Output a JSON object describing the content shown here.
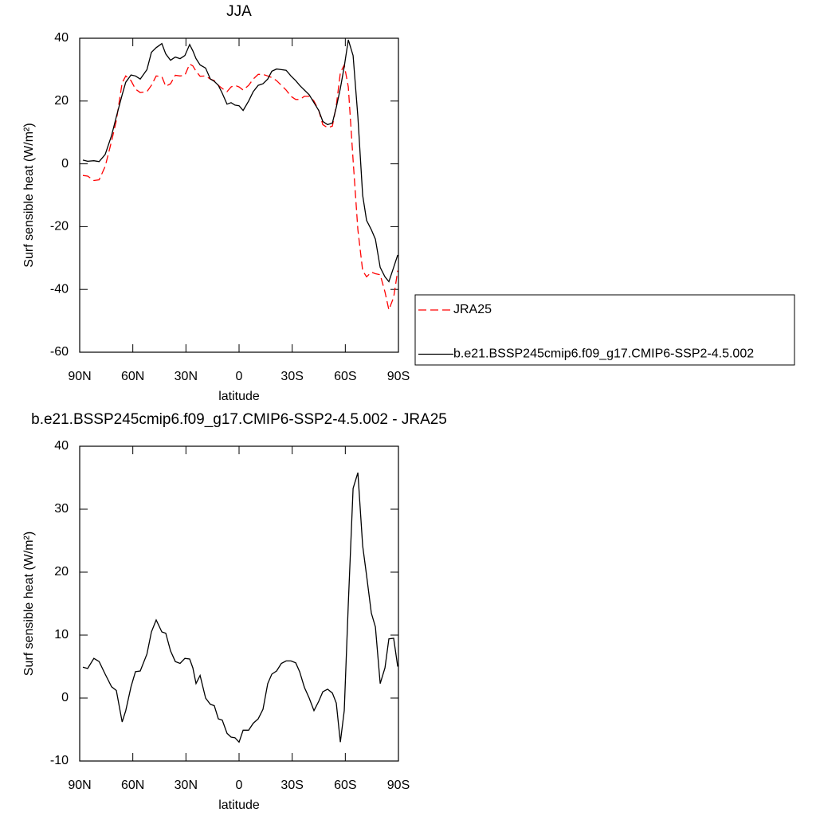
{
  "chart_data": [
    {
      "type": "line",
      "title": "JJA",
      "x_label": "latitude",
      "y_label": "Surf sensible heat (W/m²)",
      "x": [
        88.2,
        85.5,
        82,
        79,
        75.6,
        72,
        69.3,
        66,
        64,
        61,
        58.5,
        55.8,
        52,
        49.5,
        46.8,
        43.6,
        41.4,
        38.7,
        36,
        33.3,
        30.6,
        27.9,
        26.1,
        24.3,
        22,
        18.9,
        16.2,
        14,
        11.7,
        9.5,
        6.8,
        4.5,
        2.3,
        0,
        -2.3,
        -5.4,
        -8,
        -10.8,
        -13.5,
        -16.2,
        -18.5,
        -21.2,
        -23.9,
        -26.6,
        -29.3,
        -32,
        -34.2,
        -36.9,
        -39.6,
        -42.3,
        -45,
        -47.3,
        -50,
        -52.7,
        -54.9,
        -57.2,
        -59.4,
        -61.7,
        -64.4,
        -67.1,
        -69.8,
        -72,
        -74.7,
        -77,
        -79.7,
        -82.4,
        -84.6,
        -87.3,
        -89.6
      ],
      "series": [
        {
          "name": "JRA25",
          "color": "#ff0000",
          "dash": "dashed",
          "values": [
            -3.7,
            -3.9,
            -5.3,
            -5.1,
            -0.8,
            7.2,
            13.8,
            25.8,
            28,
            26.5,
            23.8,
            22.7,
            23,
            25,
            28,
            27.8,
            24.7,
            25.5,
            28.2,
            28,
            28.2,
            31.8,
            31.2,
            29.5,
            27.9,
            28,
            27,
            26.5,
            25,
            24,
            23,
            24.5,
            25,
            24.5,
            23.5,
            25,
            27,
            28.5,
            28.5,
            28,
            27.5,
            26.5,
            25,
            23.5,
            21.5,
            20.5,
            20.5,
            21.5,
            21.5,
            20,
            17,
            12.5,
            11.5,
            12,
            18.5,
            29,
            31.5,
            24.5,
            1.2,
            -21,
            -34,
            -36,
            -34.5,
            -35,
            -35.3,
            -40.8,
            -46.5,
            -42.5,
            -34
          ]
        },
        {
          "name": "b.e21.BSSP245cmip6.f09_g17.CMIP6-SSP2-4.5.002",
          "color": "#000000",
          "dash": "solid",
          "values": [
            1.2,
            0.8,
            1,
            0.7,
            3,
            9,
            15,
            22,
            26,
            28.3,
            28,
            27,
            30,
            35.5,
            37,
            38.3,
            35,
            33,
            34,
            33.5,
            34.5,
            38,
            36,
            33.5,
            31.5,
            30.5,
            27,
            26.3,
            25,
            22.5,
            19,
            19.5,
            18.7,
            18.5,
            17,
            20,
            23,
            25,
            25.5,
            27,
            29.5,
            30.2,
            30,
            29.8,
            28,
            26.5,
            25,
            23.5,
            22,
            19.5,
            17,
            13.5,
            12.5,
            13,
            18,
            24,
            31,
            39.5,
            34.5,
            15,
            -10,
            -18,
            -21,
            -24,
            -33,
            -36,
            -37.5,
            -33,
            -29
          ]
        }
      ],
      "xlim": [
        90,
        -90
      ],
      "xticks": [
        {
          "value": 90,
          "label": "90N"
        },
        {
          "value": 60,
          "label": "60N"
        },
        {
          "value": 30,
          "label": "30N"
        },
        0,
        {
          "value": -30,
          "label": "30S"
        },
        {
          "value": -60,
          "label": "60S"
        },
        {
          "value": -90,
          "label": "90S"
        }
      ],
      "ylim": [
        -60,
        40
      ],
      "yticks": [
        -60,
        -40,
        -20,
        0,
        20,
        40
      ],
      "legend": "right"
    },
    {
      "type": "line",
      "title": "b.e21.BSSP245cmip6.f09_g17.CMIP6-SSP2-4.5.002 - JRA25",
      "x_label": "latitude",
      "y_label": "Surf sensible heat (W/m²)",
      "x": [
        88.2,
        85.5,
        82,
        79,
        75.6,
        72,
        69.3,
        66,
        64,
        61,
        58.5,
        55.8,
        52,
        49.5,
        46.8,
        43.6,
        41.4,
        38.7,
        36,
        33.3,
        30.6,
        27.9,
        26.1,
        24.3,
        22,
        18.9,
        16.2,
        14,
        11.7,
        9.5,
        6.8,
        4.5,
        2.3,
        0,
        -2.3,
        -5.4,
        -8,
        -10.8,
        -13.5,
        -16.2,
        -18.5,
        -21.2,
        -23.9,
        -26.6,
        -29.3,
        -32,
        -34.2,
        -36.9,
        -39.6,
        -42.3,
        -45,
        -47.3,
        -50,
        -52.7,
        -54.9,
        -57.2,
        -59.4,
        -61.7,
        -64.4,
        -67.1,
        -69.8,
        -72,
        -74.7,
        -77,
        -79.7,
        -82.4,
        -84.6,
        -87.3,
        -89.6
      ],
      "values": [
        4.9,
        4.7,
        6.3,
        5.8,
        3.8,
        1.8,
        1.2,
        -3.8,
        -2,
        1.8,
        4.2,
        4.3,
        7,
        10.5,
        12.4,
        10.5,
        10.3,
        7.5,
        5.8,
        5.5,
        6.3,
        6.2,
        4.8,
        2.3,
        3.6,
        0,
        -1,
        -1.2,
        -3.3,
        -3.5,
        -5.6,
        -6.2,
        -6.3,
        -7,
        -5.1,
        -5.1,
        -4,
        -3.3,
        -1.8,
        2.3,
        3.8,
        4.3,
        5.5,
        5.9,
        5.9,
        5.6,
        4.2,
        1.7,
        0,
        -2,
        -0.5,
        1,
        1.4,
        0.8,
        -0.8,
        -7,
        -2,
        15,
        33.3,
        35.8,
        24.2,
        19.5,
        13.5,
        11.3,
        2.3,
        4.8,
        9.4,
        9.5,
        5
      ],
      "color": "#000000",
      "xlim": [
        90,
        -90
      ],
      "xticks": [
        {
          "value": 90,
          "label": "90N"
        },
        {
          "value": 60,
          "label": "60N"
        },
        {
          "value": 30,
          "label": "30N"
        },
        0,
        {
          "value": -30,
          "label": "30S"
        },
        {
          "value": -60,
          "label": "60S"
        },
        {
          "value": -90,
          "label": "90S"
        }
      ],
      "ylim": [
        -10,
        40
      ],
      "yticks": [
        -10,
        0,
        10,
        20,
        30,
        40
      ]
    }
  ]
}
